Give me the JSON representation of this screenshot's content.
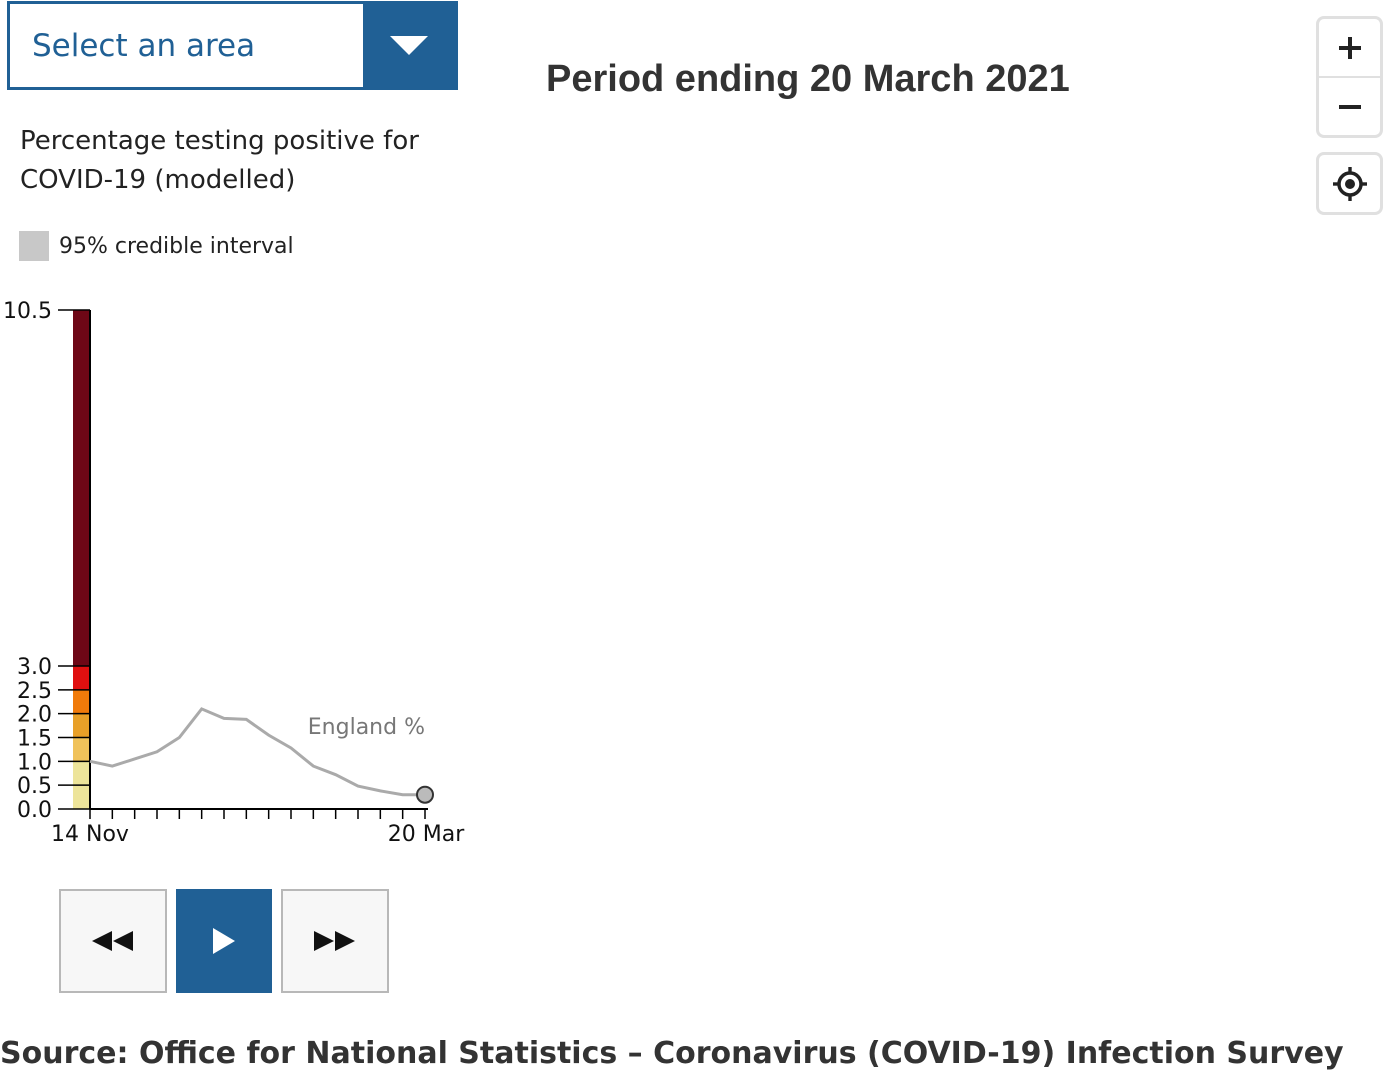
{
  "area_select": {
    "label": "Select an area"
  },
  "period_title": "Period ending 20 March 2021",
  "chart_heading": "Percentage testing positive for COVID-19 (modelled)",
  "legend": {
    "swatch_color": "#c8c8c8",
    "label": "95% credible interval"
  },
  "map_controls": {
    "zoom_in": "plus-icon",
    "zoom_out": "minus-icon",
    "locate": "locate-icon"
  },
  "playback": {
    "rewind": "rewind-icon",
    "play": "play-icon",
    "forward": "fast-forward-icon",
    "accent": "#206095"
  },
  "source": "Source: Office for National Statistics – Coronavirus (COVID-19) Infection Survey",
  "chart_data": {
    "type": "line",
    "y_ticks": [
      "0.0",
      "0.5",
      "1.0",
      "1.5",
      "2.0",
      "2.5",
      "3.0",
      "10.5"
    ],
    "x_tick_labels": [
      "14 Nov",
      "20 Mar"
    ],
    "series": [
      {
        "name": "England %",
        "values": [
          1.0,
          0.9,
          1.05,
          1.2,
          1.5,
          2.1,
          1.9,
          1.88,
          1.55,
          1.28,
          0.9,
          0.72,
          0.48,
          0.38,
          0.3,
          0.3
        ]
      }
    ],
    "color_scale": [
      {
        "from": 0.0,
        "to": 1.0,
        "color": "#ede49a"
      },
      {
        "from": 1.0,
        "to": 1.5,
        "color": "#f0c25a"
      },
      {
        "from": 1.5,
        "to": 2.0,
        "color": "#e8a028"
      },
      {
        "from": 2.0,
        "to": 2.5,
        "color": "#f07a0a"
      },
      {
        "from": 2.5,
        "to": 3.0,
        "color": "#e01010"
      },
      {
        "from": 3.0,
        "to": 10.5,
        "color": "#6e0716"
      }
    ],
    "line_color": "#aaaaaa",
    "marker_color": "#bbbbbb"
  }
}
